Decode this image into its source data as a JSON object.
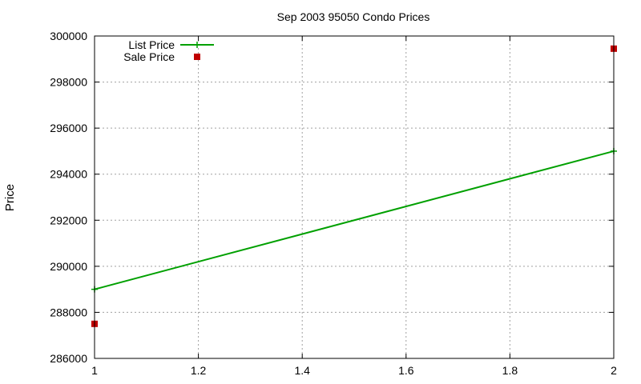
{
  "chart_data": {
    "type": "line",
    "title": "Sep 2003 95050 Condo Prices",
    "xlabel": "",
    "ylabel": "Price",
    "xlim": [
      1,
      2
    ],
    "ylim": [
      286000,
      300000
    ],
    "x_ticks": [
      1,
      1.2,
      1.4,
      1.6,
      1.8,
      2
    ],
    "x_tick_labels": [
      "1",
      "1.2",
      "1.4",
      "1.6",
      "1.8",
      "2"
    ],
    "y_ticks": [
      286000,
      288000,
      290000,
      292000,
      294000,
      296000,
      298000,
      300000
    ],
    "y_tick_labels": [
      "286000",
      "288000",
      "290000",
      "292000",
      "294000",
      "296000",
      "298000",
      "300000"
    ],
    "grid": true,
    "legend": "top-left",
    "series": [
      {
        "name": "List Price",
        "style": "line-points",
        "color": "#00a000",
        "x": [
          1,
          2
        ],
        "y": [
          289000,
          295000
        ]
      },
      {
        "name": "Sale Price",
        "style": "points",
        "color": "#c00000",
        "x": [
          1,
          2
        ],
        "y": [
          287500,
          299450
        ]
      }
    ]
  }
}
